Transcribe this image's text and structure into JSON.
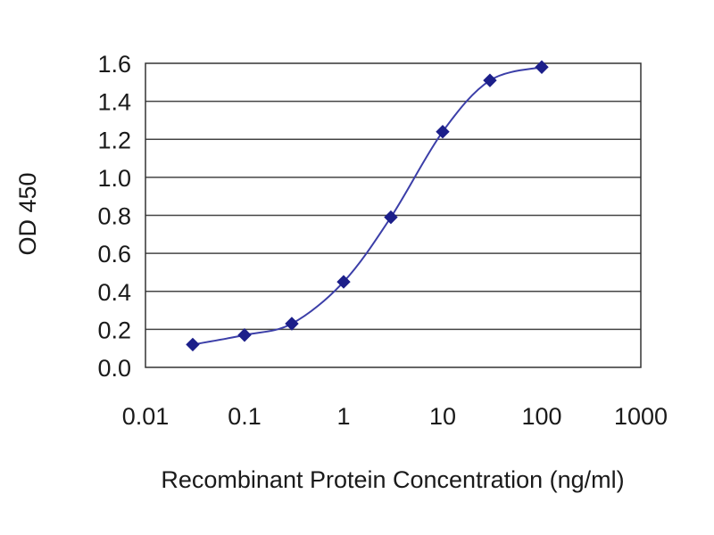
{
  "chart_data": {
    "type": "line",
    "title": "",
    "xlabel": "Recombinant Protein Concentration (ng/ml)",
    "ylabel": "OD 450",
    "x_scale": "log",
    "xlim": [
      0.01,
      1000
    ],
    "ylim": [
      0,
      1.6
    ],
    "x_ticks": [
      0.01,
      0.1,
      1,
      10,
      100,
      1000
    ],
    "x_tick_labels": [
      "0.01",
      "0.1",
      "1",
      "10",
      "100",
      "1000"
    ],
    "y_ticks": [
      0,
      0.2,
      0.4,
      0.6,
      0.8,
      1.0,
      1.2,
      1.4,
      1.6
    ],
    "y_tick_labels": [
      "0.0",
      "0.2",
      "0.4",
      "0.6",
      "0.8",
      "1.0",
      "1.2",
      "1.4",
      "1.6"
    ],
    "grid": "horizontal",
    "legend": "none",
    "series": [
      {
        "x": [
          0.03,
          0.1,
          0.3,
          1,
          3,
          10,
          30,
          100
        ],
        "y": [
          0.12,
          0.17,
          0.23,
          0.45,
          0.79,
          1.24,
          1.51,
          1.58
        ],
        "color": "#1c1f8a"
      }
    ]
  }
}
